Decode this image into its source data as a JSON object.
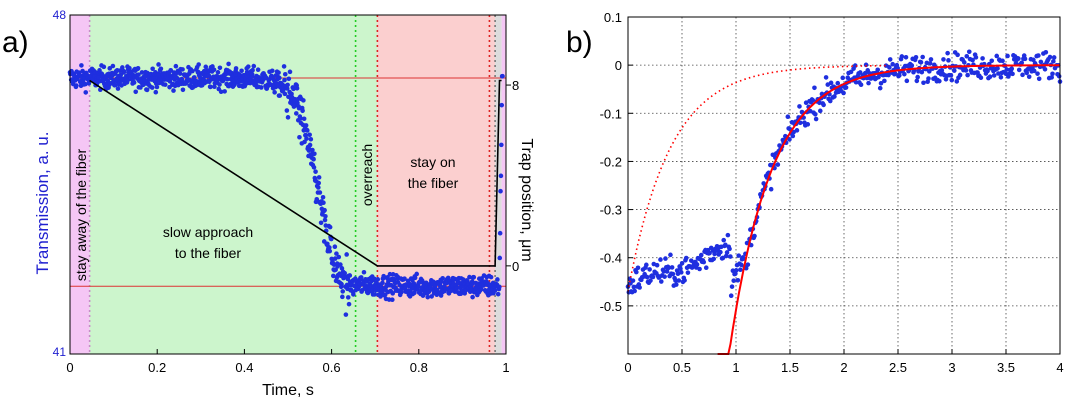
{
  "colors": {
    "points": "#1f2fdf",
    "fit": "#ff0000",
    "trap": "#000000",
    "stay_away_region": "#f5c6f5",
    "approach_region": "#ccf5cc",
    "stay_on_region": "#fbcfcf",
    "left_axis": "#1f1fd0"
  },
  "chart_data": [
    {
      "panel_label": "a)",
      "type": "scatter",
      "xlabel": "Time, s",
      "ylabel_left": "Transmission, a. u.",
      "ylabel_right": "Trap position, μm",
      "xlim": [
        0,
        1
      ],
      "ylim_left": [
        41,
        48
      ],
      "ylim_right": [
        -3.9,
        11.1
      ],
      "x_ticks": [
        "0",
        "0.2",
        "0.4",
        "0.6",
        "0.8",
        "1"
      ],
      "x_tick_values": [
        0,
        0.2,
        0.4,
        0.6,
        0.8,
        1.0
      ],
      "y_left_ticks": [
        "41",
        "48"
      ],
      "y_left_tick_values": [
        41,
        48
      ],
      "y_right_ticks": [
        "0",
        "8"
      ],
      "y_right_tick_values": [
        0,
        8
      ],
      "grid": false,
      "regions": [
        {
          "label": "stay away of the fiber",
          "x": [
            0,
            0.045
          ],
          "color_key": "stay_away_region"
        },
        {
          "label": "slow approach to the fiber",
          "x": [
            0.045,
            0.705
          ],
          "color_key": "approach_region"
        },
        {
          "label": "overreach",
          "x": [
            0.655,
            0.705
          ],
          "color_key": "approach_region"
        },
        {
          "label": "stay on the fiber",
          "x": [
            0.705,
            0.975
          ],
          "color_key": "stay_on_region"
        }
      ],
      "region_boundaries": [
        {
          "x": 0.045,
          "color": "#c78cc7"
        },
        {
          "x": 0.655,
          "color": "#22cc22"
        },
        {
          "x": 0.705,
          "color": "#dd2222"
        },
        {
          "x": 0.962,
          "color": "#dd2222"
        },
        {
          "x": 0.975,
          "color": "#777777"
        }
      ],
      "annotations": {
        "stay_away": "stay away of the fiber",
        "approach_line1": "slow approach",
        "approach_line2": "to the fiber",
        "overreach": "overreach",
        "stay_on_line1": "stay on",
        "stay_on_line2": "the fiber"
      },
      "reference_levels": [
        46.7,
        42.4
      ],
      "transmission_model": {
        "high": 46.7,
        "low": 42.4,
        "midpoint_x": 0.565,
        "width": 0.025,
        "noise": 0.16,
        "dip_center_x": 0.625,
        "dip_depth": 0.25,
        "n_points": 1100,
        "final_recovery_x": 0.985
      },
      "trap_position": {
        "x": [
          0.045,
          0.705,
          0.975,
          0.985,
          0.99
        ],
        "y": [
          8.2,
          0,
          0,
          8.2,
          8.2
        ]
      }
    },
    {
      "panel_label": "b)",
      "type": "scatter",
      "xlim": [
        0,
        4
      ],
      "ylim": [
        -0.6,
        0.1
      ],
      "x_ticks": [
        "0",
        "0.5",
        "1",
        "1.5",
        "2",
        "2.5",
        "3",
        "3.5",
        "4"
      ],
      "x_tick_values": [
        0,
        0.5,
        1,
        1.5,
        2,
        2.5,
        3,
        3.5,
        4
      ],
      "y_ticks": [
        "0.1",
        "0",
        "-0.1",
        "-0.2",
        "-0.3",
        "-0.4",
        "-0.5"
      ],
      "y_tick_values": [
        0.1,
        0,
        -0.1,
        -0.2,
        -0.3,
        -0.4,
        -0.5
      ],
      "grid": true,
      "scatter_model": {
        "n_points": 520,
        "noise": 0.02,
        "early_segment": {
          "x_end": 0.95,
          "y_start": -0.46,
          "y_end": -0.38
        },
        "fit_amplitude": 6.6,
        "fit_tau": 0.39
      },
      "fit_solid": {
        "amplitude": 6.6,
        "tau": 0.39,
        "x_start": 0.83,
        "x_end": 4.0
      },
      "fit_dotted": {
        "amplitude": 0.47,
        "tau": 0.39,
        "x_start": 0.0,
        "x_end": 2.4
      }
    }
  ]
}
